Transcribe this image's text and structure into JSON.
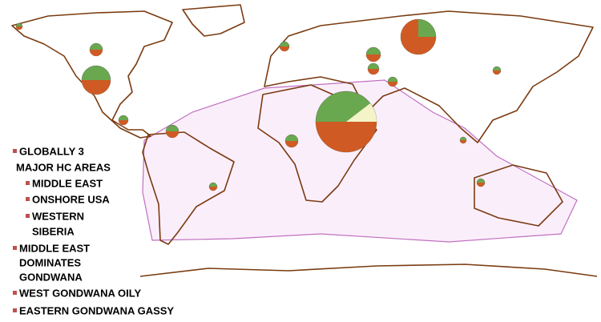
{
  "bullets": [
    {
      "lines": [
        "GLOBALLY 3",
        "MAJOR HC AREAS"
      ],
      "sub": [
        {
          "lines": [
            "MIDDLE EAST"
          ]
        },
        {
          "lines": [
            "ONSHORE USA"
          ]
        },
        {
          "lines": [
            "WESTERN",
            "SIBERIA"
          ]
        }
      ]
    },
    {
      "lines": [
        "MIDDLE EAST",
        "DOMINATES",
        "GONDWANA"
      ]
    },
    {
      "lines": [
        "WEST GONDWANA OILY"
      ]
    },
    {
      "lines": [
        "EASTERN GONDWANA GASSY"
      ]
    }
  ]
}
